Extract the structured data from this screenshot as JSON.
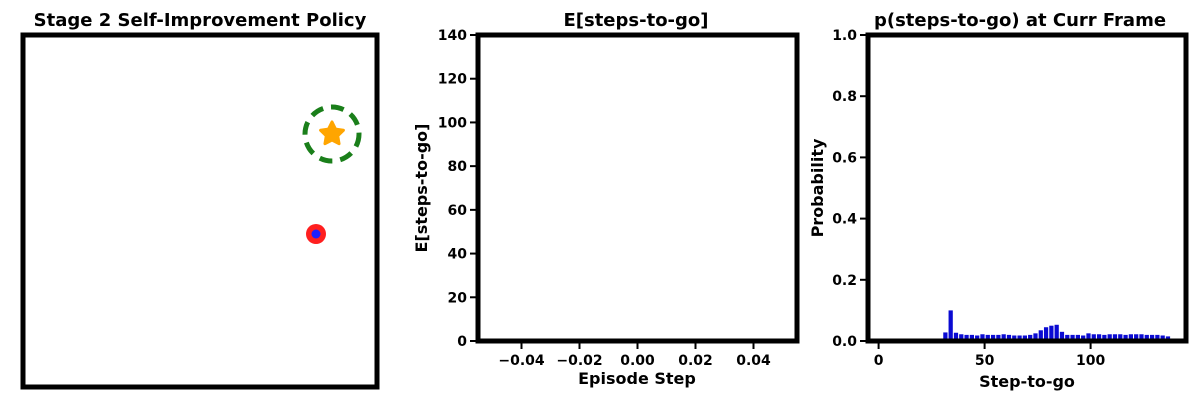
{
  "chart_data": [
    {
      "type": "scatter",
      "title": "Stage 2 Self-Improvement Policy",
      "markers": {
        "goal": {
          "color": "#ffa500",
          "shape": "star",
          "ring_color": "#1a7f1a",
          "ring_style": "dashed"
        },
        "agent": {
          "outer_color": "#ff1f1f",
          "inner_color": "#1f1fff",
          "shape": "circle"
        }
      }
    },
    {
      "type": "line",
      "title": "E[steps-to-go]",
      "xlabel": "Episode Step",
      "ylabel": "E[steps-to-go]",
      "xlim": [
        -0.055,
        0.055
      ],
      "ylim": [
        0,
        140
      ],
      "xticks": [
        "−0.04",
        "−0.02",
        "0.00",
        "0.02",
        "0.04"
      ],
      "xtick_values": [
        -0.04,
        -0.02,
        0.0,
        0.02,
        0.04
      ],
      "yticks": [
        "0",
        "20",
        "40",
        "60",
        "80",
        "100",
        "120",
        "140"
      ],
      "ytick_values": [
        0,
        20,
        40,
        60,
        80,
        100,
        120,
        140
      ],
      "series": []
    },
    {
      "type": "bar",
      "title": "p(steps-to-go) at Curr Frame",
      "xlabel": "Step-to-go",
      "ylabel": "Probability",
      "xlim": [
        -5,
        145
      ],
      "ylim": [
        0,
        1.0
      ],
      "xticks": [
        "0",
        "50",
        "100"
      ],
      "xtick_values": [
        0,
        50,
        100
      ],
      "yticks": [
        "0.0",
        "0.2",
        "0.4",
        "0.6",
        "0.8",
        "1.0"
      ],
      "ytick_values": [
        0.0,
        0.2,
        0.4,
        0.6,
        0.8,
        1.0
      ],
      "bar_color": "#0a0ad2",
      "x": [
        31.5,
        34,
        36.5,
        39,
        41.5,
        44,
        46.5,
        49,
        51.5,
        54,
        56.5,
        59,
        61.5,
        64,
        66.5,
        69,
        71.5,
        74,
        76.5,
        79,
        81.5,
        84,
        86.5,
        89,
        91.5,
        94,
        96.5,
        99,
        101.5,
        104,
        106.5,
        109,
        111.5,
        114,
        116.5,
        119,
        121.5,
        124,
        126.5,
        129,
        131.5,
        134,
        136.5
      ],
      "values": [
        0.028,
        0.1,
        0.027,
        0.022,
        0.02,
        0.02,
        0.018,
        0.022,
        0.02,
        0.02,
        0.02,
        0.022,
        0.02,
        0.018,
        0.018,
        0.018,
        0.02,
        0.025,
        0.035,
        0.045,
        0.05,
        0.053,
        0.03,
        0.02,
        0.02,
        0.02,
        0.018,
        0.025,
        0.022,
        0.022,
        0.02,
        0.022,
        0.022,
        0.022,
        0.02,
        0.022,
        0.022,
        0.022,
        0.02,
        0.02,
        0.02,
        0.018,
        0.015
      ]
    }
  ]
}
